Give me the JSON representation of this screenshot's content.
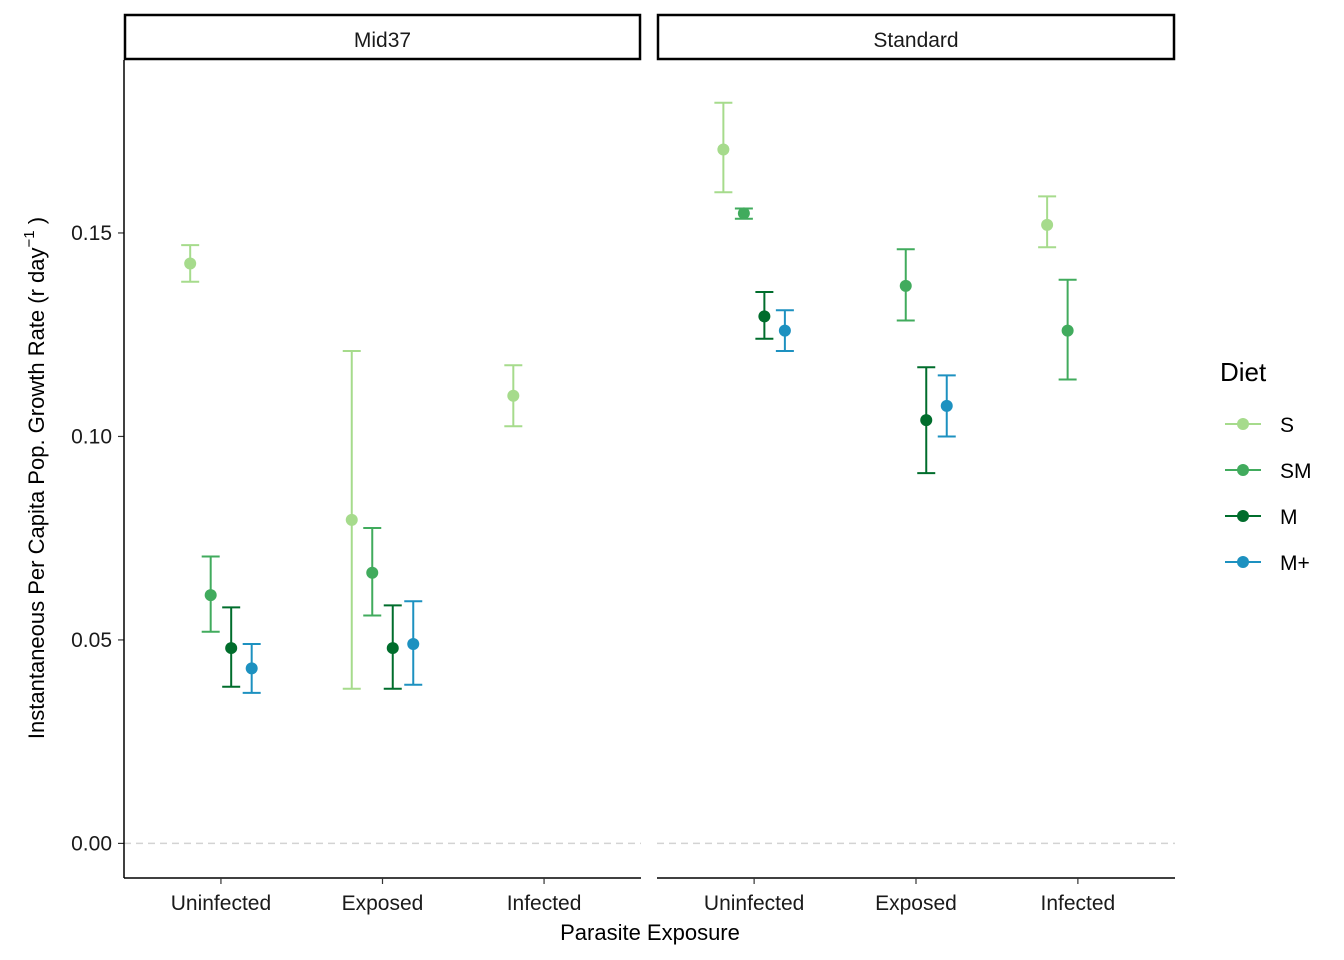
{
  "chart_data": {
    "type": "scatter",
    "subtype": "point-range with error bars, faceted",
    "xlabel": "Parasite Exposure",
    "ylabel_main": "Instantaneous Per Capita Pop. Growth Rate (r day",
    "ylabel_sup": "−1",
    "ylabel_close": " )",
    "ylim": [
      -0.0085,
      0.1925
    ],
    "yticks": [
      0.0,
      0.05,
      0.1,
      0.15
    ],
    "ytick_labels": [
      "0.00",
      "0.05",
      "0.10",
      "0.15"
    ],
    "reference_line": {
      "y": 0,
      "style": "dashed",
      "color": "#d3d3d3"
    },
    "categories": [
      "Uninfected",
      "Exposed",
      "Infected"
    ],
    "legend": {
      "title": "Diet",
      "position": "right",
      "entries": [
        {
          "name": "S",
          "color": "#a6db8c"
        },
        {
          "name": "SM",
          "color": "#41ab5d"
        },
        {
          "name": "M",
          "color": "#006d2c"
        },
        {
          "name": "M+",
          "color": "#1d91c0"
        }
      ]
    },
    "panels": [
      {
        "strip": "Mid37",
        "points": [
          {
            "category": "Uninfected",
            "series": "S",
            "y": 0.1425,
            "ymin": 0.138,
            "ymax": 0.147
          },
          {
            "category": "Uninfected",
            "series": "SM",
            "y": 0.061,
            "ymin": 0.052,
            "ymax": 0.0705
          },
          {
            "category": "Uninfected",
            "series": "M",
            "y": 0.048,
            "ymin": 0.0385,
            "ymax": 0.058
          },
          {
            "category": "Uninfected",
            "series": "M+",
            "y": 0.043,
            "ymin": 0.037,
            "ymax": 0.049
          },
          {
            "category": "Exposed",
            "series": "S",
            "y": 0.0795,
            "ymin": 0.038,
            "ymax": 0.121
          },
          {
            "category": "Exposed",
            "series": "SM",
            "y": 0.0665,
            "ymin": 0.056,
            "ymax": 0.0775
          },
          {
            "category": "Exposed",
            "series": "M",
            "y": 0.048,
            "ymin": 0.038,
            "ymax": 0.0585
          },
          {
            "category": "Exposed",
            "series": "M+",
            "y": 0.049,
            "ymin": 0.039,
            "ymax": 0.0595
          },
          {
            "category": "Infected",
            "series": "S",
            "y": 0.11,
            "ymin": 0.1025,
            "ymax": 0.1175
          }
        ]
      },
      {
        "strip": "Standard",
        "points": [
          {
            "category": "Uninfected",
            "series": "S",
            "y": 0.1705,
            "ymin": 0.16,
            "ymax": 0.182
          },
          {
            "category": "Uninfected",
            "series": "SM",
            "y": 0.1548,
            "ymin": 0.1535,
            "ymax": 0.156
          },
          {
            "category": "Uninfected",
            "series": "M",
            "y": 0.1295,
            "ymin": 0.124,
            "ymax": 0.1355
          },
          {
            "category": "Uninfected",
            "series": "M+",
            "y": 0.126,
            "ymin": 0.121,
            "ymax": 0.131
          },
          {
            "category": "Exposed",
            "series": "SM",
            "y": 0.137,
            "ymin": 0.1285,
            "ymax": 0.146
          },
          {
            "category": "Exposed",
            "series": "M",
            "y": 0.104,
            "ymin": 0.091,
            "ymax": 0.117
          },
          {
            "category": "Exposed",
            "series": "M+",
            "y": 0.1075,
            "ymin": 0.1,
            "ymax": 0.115
          },
          {
            "category": "Infected",
            "series": "S",
            "y": 0.152,
            "ymin": 0.1465,
            "ymax": 0.159
          },
          {
            "category": "Infected",
            "series": "SM",
            "y": 0.126,
            "ymin": 0.114,
            "ymax": 0.1385
          }
        ]
      }
    ]
  }
}
